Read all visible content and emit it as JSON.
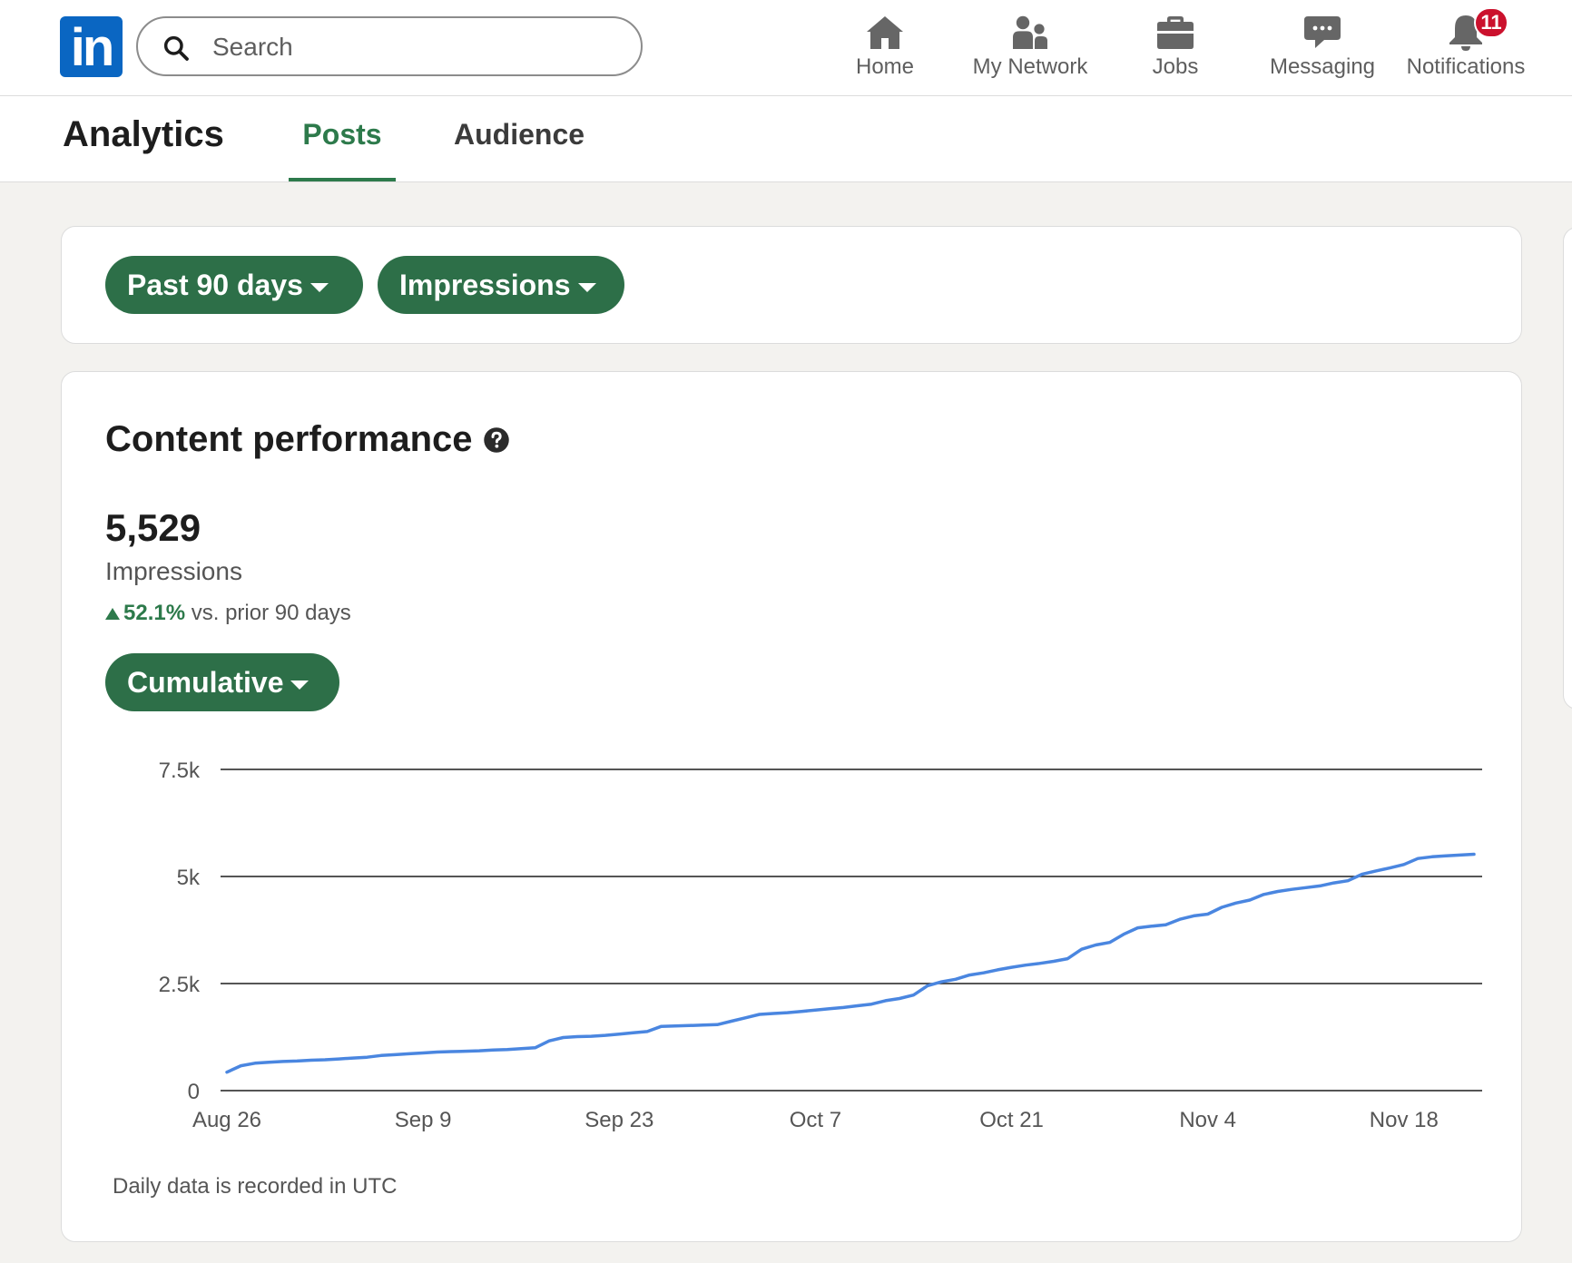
{
  "nav": {
    "logo_text": "in",
    "search_placeholder": "Search",
    "items": [
      {
        "label": "Home",
        "icon": "home-icon"
      },
      {
        "label": "My Network",
        "icon": "network-icon"
      },
      {
        "label": "Jobs",
        "icon": "briefcase-icon"
      },
      {
        "label": "Messaging",
        "icon": "messaging-icon"
      },
      {
        "label": "Notifications",
        "icon": "bell-icon",
        "badge": "11"
      }
    ],
    "brand_color": "#0a66c2",
    "badge_color": "#cb112d"
  },
  "header": {
    "title": "Analytics",
    "tabs": [
      {
        "label": "Posts",
        "active": true
      },
      {
        "label": "Audience",
        "active": false
      }
    ],
    "accent_color": "#2d7a4b"
  },
  "filters": {
    "range_label": "Past 90 days",
    "metric_label": "Impressions",
    "pill_color": "#2d6f48"
  },
  "performance": {
    "title": "Content performance",
    "help_icon": "question-circle-icon",
    "total": "5,529",
    "total_label": "Impressions",
    "delta": "52.1%",
    "delta_text": "vs. prior 90 days",
    "mode_label": "Cumulative",
    "footnote": "Daily data is recorded in UTC"
  },
  "chart_data": {
    "type": "line",
    "title": "",
    "xlabel": "",
    "ylabel": "",
    "x_tick_labels": [
      "Aug 26",
      "Sep 9",
      "Sep 23",
      "Oct 7",
      "Oct 21",
      "Nov 4",
      "Nov 18"
    ],
    "y_tick_labels": [
      "0",
      "2.5k",
      "5k",
      "7.5k"
    ],
    "y_ticks": [
      0,
      2500,
      5000,
      7500
    ],
    "ylim": [
      0,
      7500
    ],
    "xlim_days": [
      0,
      89
    ],
    "grid": true,
    "line_color": "#4a86e0",
    "series": [
      {
        "name": "",
        "x": [
          0,
          1,
          2,
          3,
          4,
          5,
          6,
          7,
          8,
          9,
          10,
          11,
          12,
          13,
          14,
          15,
          16,
          17,
          18,
          19,
          20,
          21,
          22,
          23,
          24,
          25,
          26,
          27,
          28,
          29,
          30,
          31,
          32,
          33,
          34,
          35,
          36,
          37,
          38,
          39,
          40,
          41,
          42,
          43,
          44,
          45,
          46,
          47,
          48,
          49,
          50,
          51,
          52,
          53,
          54,
          55,
          56,
          57,
          58,
          59,
          60,
          61,
          62,
          63,
          64,
          65,
          66,
          67,
          68,
          69,
          70,
          71,
          72,
          73,
          74,
          75,
          76,
          77,
          78,
          79,
          80,
          81,
          82,
          83,
          84,
          85,
          86,
          87,
          88,
          89
        ],
        "y": [
          430,
          580,
          640,
          660,
          680,
          690,
          710,
          720,
          740,
          760,
          780,
          820,
          840,
          860,
          880,
          900,
          910,
          920,
          930,
          950,
          960,
          980,
          1000,
          1160,
          1240,
          1260,
          1270,
          1290,
          1320,
          1350,
          1380,
          1500,
          1510,
          1520,
          1530,
          1540,
          1620,
          1700,
          1780,
          1800,
          1820,
          1850,
          1880,
          1910,
          1940,
          1980,
          2020,
          2100,
          2150,
          2230,
          2450,
          2540,
          2600,
          2700,
          2750,
          2820,
          2880,
          2930,
          2970,
          3020,
          3080,
          3300,
          3400,
          3460,
          3650,
          3800,
          3840,
          3870,
          4000,
          4080,
          4120,
          4280,
          4380,
          4450,
          4580,
          4650,
          4700,
          4740,
          4780,
          4850,
          4900,
          5050,
          5130,
          5200,
          5280,
          5420,
          5460,
          5480,
          5500,
          5520
        ]
      }
    ]
  }
}
